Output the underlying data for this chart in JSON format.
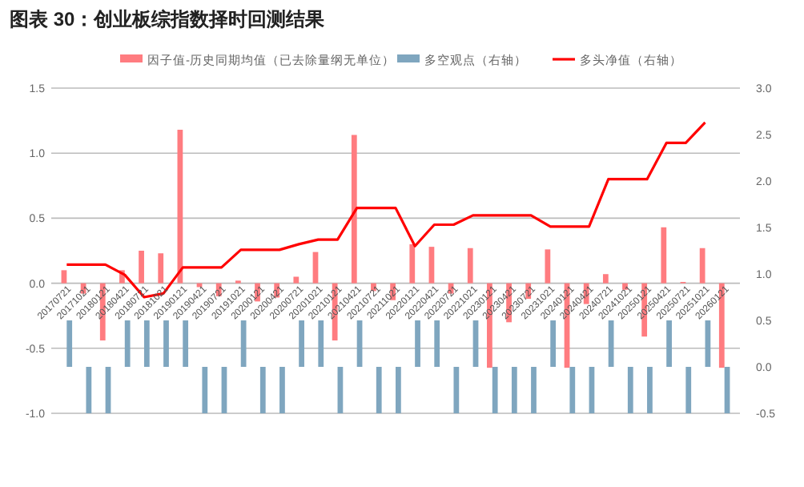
{
  "chart_data": {
    "type": "bar",
    "title": "图表 30：创业板综指数择时回测结果",
    "categories": [
      "20170721",
      "20171021",
      "20180121",
      "20180421",
      "20180721",
      "20181021",
      "20190121",
      "20190421",
      "20190721",
      "20191021",
      "20200121",
      "20200421",
      "20200721",
      "20201021",
      "20210121",
      "20210421",
      "20210721",
      "20211021",
      "20220121",
      "20220421",
      "20220721",
      "20221021",
      "20230121",
      "20230421",
      "20230721",
      "20231021",
      "20240121",
      "20240421",
      "20240721",
      "20241021",
      "20250121",
      "20250421",
      "20250721",
      "20251021",
      "20260121"
    ],
    "series": [
      {
        "name": "因子值-历史同期均值（已去除量纲无单位）",
        "color": "#ff7c80",
        "values": [
          0.1,
          -0.08,
          -0.44,
          0.1,
          0.25,
          0.23,
          1.18,
          -0.03,
          -0.1,
          0.02,
          -0.14,
          -0.11,
          0.05,
          0.24,
          -0.44,
          1.14,
          -0.06,
          -0.13,
          0.3,
          0.28,
          -0.08,
          0.27,
          -0.65,
          -0.3,
          -0.12,
          0.26,
          -0.65,
          -0.16,
          0.07,
          -0.05,
          -0.41,
          0.43,
          0.01,
          0.27,
          -0.65
        ]
      },
      {
        "name": "多空观点（右轴）",
        "axis": "y2",
        "color": "#7fa6bf",
        "values": [
          0.5,
          -0.5,
          -0.5,
          0.5,
          0.5,
          0.5,
          0.5,
          -0.5,
          -0.5,
          0.5,
          -0.5,
          -0.5,
          0.5,
          0.5,
          -0.5,
          0.5,
          -0.5,
          -0.5,
          0.5,
          0.5,
          -0.5,
          0.5,
          -0.5,
          -0.5,
          -0.5,
          0.5,
          -0.5,
          -0.5,
          0.5,
          -0.5,
          -0.5,
          0.5,
          -0.5,
          0.5,
          -0.5
        ]
      },
      {
        "name": "多头净值（右轴）",
        "type": "line",
        "axis": "y2",
        "color": "#ff0000",
        "values": [
          1.1,
          1.1,
          1.1,
          0.99,
          0.75,
          0.79,
          1.07,
          1.07,
          1.07,
          1.26,
          1.26,
          1.26,
          1.32,
          1.37,
          1.37,
          1.71,
          1.71,
          1.71,
          1.3,
          1.53,
          1.53,
          1.63,
          1.63,
          1.63,
          1.63,
          1.51,
          1.51,
          1.51,
          2.02,
          2.02,
          2.02,
          2.41,
          2.41,
          2.63,
          null
        ]
      }
    ],
    "ylim": [
      -1,
      1.5
    ],
    "yticks": [
      {
        "value": -1,
        "label": "-1.0"
      },
      {
        "value": -0.5,
        "label": "-0.5"
      },
      {
        "value": 0,
        "label": "0.0"
      },
      {
        "value": 0.5,
        "label": "0.5"
      },
      {
        "value": 1,
        "label": "1.0"
      },
      {
        "value": 1.5,
        "label": "1.5"
      }
    ],
    "y2lim": [
      -0.5,
      3
    ],
    "y2ticks": [
      {
        "value": -0.5,
        "label": "-0.5"
      },
      {
        "value": 0,
        "label": "0.0"
      },
      {
        "value": 0.5,
        "label": "0.5"
      },
      {
        "value": 1,
        "label": "1.0"
      },
      {
        "value": 1.5,
        "label": "1.5"
      },
      {
        "value": 2,
        "label": "2.0"
      },
      {
        "value": 2.5,
        "label": "2.5"
      },
      {
        "value": 3,
        "label": "3.0"
      }
    ],
    "grid": "y",
    "legend": "top",
    "marker": "none",
    "line_style": "solid"
  }
}
